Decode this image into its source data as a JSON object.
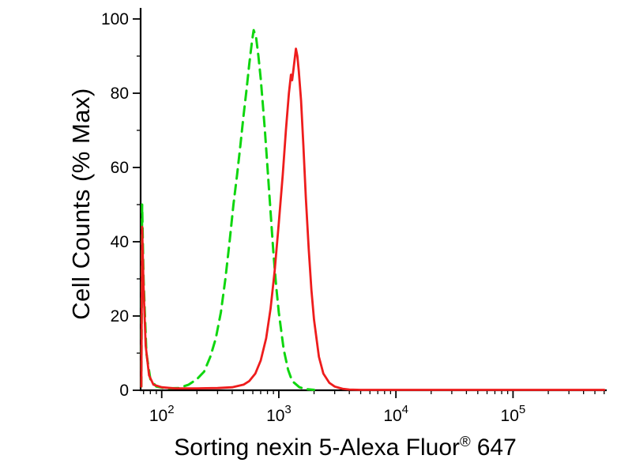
{
  "figure": {
    "background": "#ffffff",
    "axis_color": "#000000"
  },
  "chart_data": {
    "type": "line",
    "subtype": "flow-cytometry-overlay-histogram",
    "title": "",
    "xlabel": "Sorting nexin 5-Alexa Fluor® 647",
    "xlabel_parts": {
      "main": "Sorting nexin 5-Alexa Fluor",
      "registered": "®",
      "tail": "647"
    },
    "ylabel": "Cell Counts (% Max)",
    "x_scale": "log",
    "x_domain_log": [
      1.82,
      5.8
    ],
    "ylim": [
      0,
      100
    ],
    "grid": false,
    "legend": "none",
    "y_major_ticks": [
      0,
      20,
      40,
      60,
      80,
      100
    ],
    "y_minor_step": 10,
    "x_major_ticks": [
      {
        "base": "10",
        "exp": "2",
        "value": 100
      },
      {
        "base": "10",
        "exp": "3",
        "value": 1000
      },
      {
        "base": "10",
        "exp": "4",
        "value": 10000
      },
      {
        "base": "10",
        "exp": "5",
        "value": 100000
      }
    ],
    "series": [
      {
        "name": "green-dashed-histogram",
        "color": "#0fd60f",
        "style": "dashed",
        "dash": "12 8",
        "width": 3,
        "peak_x": 610,
        "peak_y": 97,
        "points": [
          [
            67,
            1
          ],
          [
            68,
            50
          ],
          [
            70,
            30
          ],
          [
            74,
            10
          ],
          [
            80,
            3
          ],
          [
            90,
            1
          ],
          [
            110,
            0.5
          ],
          [
            140,
            0.6
          ],
          [
            170,
            1.5
          ],
          [
            200,
            3
          ],
          [
            230,
            5
          ],
          [
            260,
            9
          ],
          [
            290,
            14
          ],
          [
            320,
            21
          ],
          [
            350,
            30
          ],
          [
            380,
            40
          ],
          [
            410,
            50
          ],
          [
            440,
            58
          ],
          [
            470,
            66
          ],
          [
            500,
            74
          ],
          [
            530,
            81
          ],
          [
            560,
            88
          ],
          [
            590,
            94
          ],
          [
            610,
            97
          ],
          [
            640,
            95
          ],
          [
            670,
            90
          ],
          [
            700,
            84
          ],
          [
            730,
            77
          ],
          [
            760,
            70
          ],
          [
            800,
            60
          ],
          [
            850,
            48
          ],
          [
            900,
            37
          ],
          [
            950,
            28
          ],
          [
            1000,
            21
          ],
          [
            1100,
            11
          ],
          [
            1200,
            5.5
          ],
          [
            1300,
            2.5
          ],
          [
            1500,
            0.8
          ],
          [
            1700,
            0.3
          ],
          [
            2000,
            0.1
          ]
        ]
      },
      {
        "name": "red-solid-histogram",
        "color": "#ee1c1c",
        "style": "solid",
        "dash": "",
        "width": 2.8,
        "peak_x": 1400,
        "peak_y": 92,
        "points": [
          [
            67,
            1
          ],
          [
            68,
            44
          ],
          [
            70,
            28
          ],
          [
            73,
            12
          ],
          [
            78,
            4
          ],
          [
            85,
            1.5
          ],
          [
            100,
            0.8
          ],
          [
            130,
            0.5
          ],
          [
            200,
            0.5
          ],
          [
            300,
            0.6
          ],
          [
            400,
            0.8
          ],
          [
            500,
            1.5
          ],
          [
            560,
            2.5
          ],
          [
            630,
            4.5
          ],
          [
            700,
            8
          ],
          [
            780,
            14
          ],
          [
            850,
            22
          ],
          [
            920,
            32
          ],
          [
            1000,
            45
          ],
          [
            1080,
            58
          ],
          [
            1150,
            70
          ],
          [
            1220,
            80
          ],
          [
            1270,
            85
          ],
          [
            1300,
            83.5
          ],
          [
            1340,
            87
          ],
          [
            1400,
            92
          ],
          [
            1440,
            90
          ],
          [
            1480,
            86
          ],
          [
            1550,
            78
          ],
          [
            1620,
            66
          ],
          [
            1700,
            52
          ],
          [
            1800,
            38
          ],
          [
            1900,
            27
          ],
          [
            2000,
            19
          ],
          [
            2200,
            9
          ],
          [
            2400,
            4.5
          ],
          [
            2700,
            2
          ],
          [
            3000,
            1
          ],
          [
            3500,
            0.4
          ],
          [
            4000,
            0.2
          ],
          [
            5000,
            0.1
          ],
          [
            10000,
            0.1
          ],
          [
            50000,
            0.1
          ],
          [
            100000,
            0.1
          ],
          [
            300000,
            0.1
          ],
          [
            600000,
            0.1
          ]
        ]
      }
    ]
  }
}
